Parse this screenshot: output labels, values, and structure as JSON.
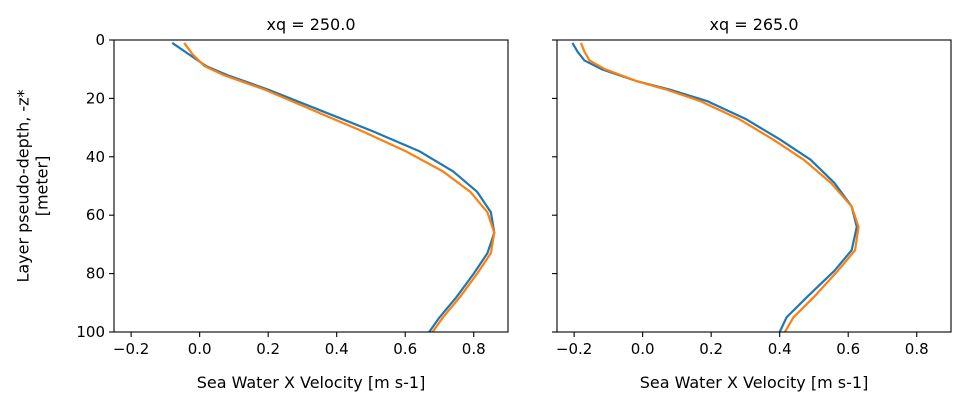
{
  "chart_data": [
    {
      "type": "line",
      "title": "xq = 250.0",
      "xlabel": "Sea Water X Velocity [m s-1]",
      "ylabel": "Layer pseudo-depth, -z*\n[meter]",
      "xlim": [
        -0.25,
        0.9
      ],
      "ylim": [
        100,
        0
      ],
      "y_inverted": true,
      "xticks": [
        -0.2,
        0.0,
        0.2,
        0.4,
        0.6,
        0.8
      ],
      "xtick_labels": [
        "−0.2",
        "0.0",
        "0.2",
        "0.4",
        "0.6",
        "0.8"
      ],
      "yticks": [
        0,
        20,
        40,
        60,
        80,
        100
      ],
      "ytick_labels": [
        "0",
        "20",
        "40",
        "60",
        "80",
        "100"
      ],
      "grid": false,
      "series": [
        {
          "color": "#1f77b4",
          "points": [
            [
              -0.08,
              1
            ],
            [
              -0.03,
              5
            ],
            [
              0.02,
              9
            ],
            [
              0.08,
              12
            ],
            [
              0.2,
              17
            ],
            [
              0.35,
              24
            ],
            [
              0.5,
              31
            ],
            [
              0.64,
              38
            ],
            [
              0.74,
              45
            ],
            [
              0.81,
              52
            ],
            [
              0.85,
              59
            ],
            [
              0.86,
              66
            ],
            [
              0.84,
              73
            ],
            [
              0.8,
              80
            ],
            [
              0.75,
              88
            ],
            [
              0.7,
              95
            ],
            [
              0.67,
              100
            ]
          ]
        },
        {
          "color": "#ff7f0e",
          "points": [
            [
              -0.045,
              1
            ],
            [
              -0.02,
              5
            ],
            [
              0.015,
              9
            ],
            [
              0.07,
              12
            ],
            [
              0.19,
              17
            ],
            [
              0.33,
              24
            ],
            [
              0.47,
              31
            ],
            [
              0.6,
              38
            ],
            [
              0.71,
              45
            ],
            [
              0.79,
              52
            ],
            [
              0.84,
              59
            ],
            [
              0.86,
              66
            ],
            [
              0.85,
              73
            ],
            [
              0.81,
              80
            ],
            [
              0.76,
              88
            ],
            [
              0.71,
              95
            ],
            [
              0.68,
              100
            ]
          ]
        }
      ]
    },
    {
      "type": "line",
      "title": "xq = 265.0",
      "xlabel": "Sea Water X Velocity [m s-1]",
      "ylabel": "",
      "xlim": [
        -0.25,
        0.9
      ],
      "ylim": [
        100,
        0
      ],
      "y_inverted": true,
      "xticks": [
        -0.2,
        0.0,
        0.2,
        0.4,
        0.6,
        0.8
      ],
      "xtick_labels": [
        "−0.2",
        "0.0",
        "0.2",
        "0.4",
        "0.6",
        "0.8"
      ],
      "yticks": [
        0,
        20,
        40,
        60,
        80,
        100
      ],
      "ytick_labels": [],
      "grid": false,
      "series": [
        {
          "color": "#1f77b4",
          "points": [
            [
              -0.205,
              1
            ],
            [
              -0.19,
              4
            ],
            [
              -0.17,
              7
            ],
            [
              -0.12,
              10
            ],
            [
              -0.02,
              14
            ],
            [
              0.08,
              17
            ],
            [
              0.19,
              21
            ],
            [
              0.3,
              27
            ],
            [
              0.4,
              34
            ],
            [
              0.49,
              41
            ],
            [
              0.56,
              49
            ],
            [
              0.61,
              57
            ],
            [
              0.625,
              64
            ],
            [
              0.61,
              72
            ],
            [
              0.56,
              79
            ],
            [
              0.48,
              88
            ],
            [
              0.42,
              95
            ],
            [
              0.4,
              100
            ]
          ]
        },
        {
          "color": "#ff7f0e",
          "points": [
            [
              -0.18,
              1
            ],
            [
              -0.17,
              4
            ],
            [
              -0.155,
              7
            ],
            [
              -0.11,
              10
            ],
            [
              -0.02,
              14
            ],
            [
              0.07,
              17
            ],
            [
              0.17,
              21
            ],
            [
              0.28,
              27
            ],
            [
              0.38,
              34
            ],
            [
              0.47,
              41
            ],
            [
              0.55,
              49
            ],
            [
              0.61,
              57
            ],
            [
              0.63,
              64
            ],
            [
              0.62,
              72
            ],
            [
              0.57,
              79
            ],
            [
              0.5,
              88
            ],
            [
              0.44,
              95
            ],
            [
              0.415,
              100
            ]
          ]
        }
      ]
    }
  ]
}
